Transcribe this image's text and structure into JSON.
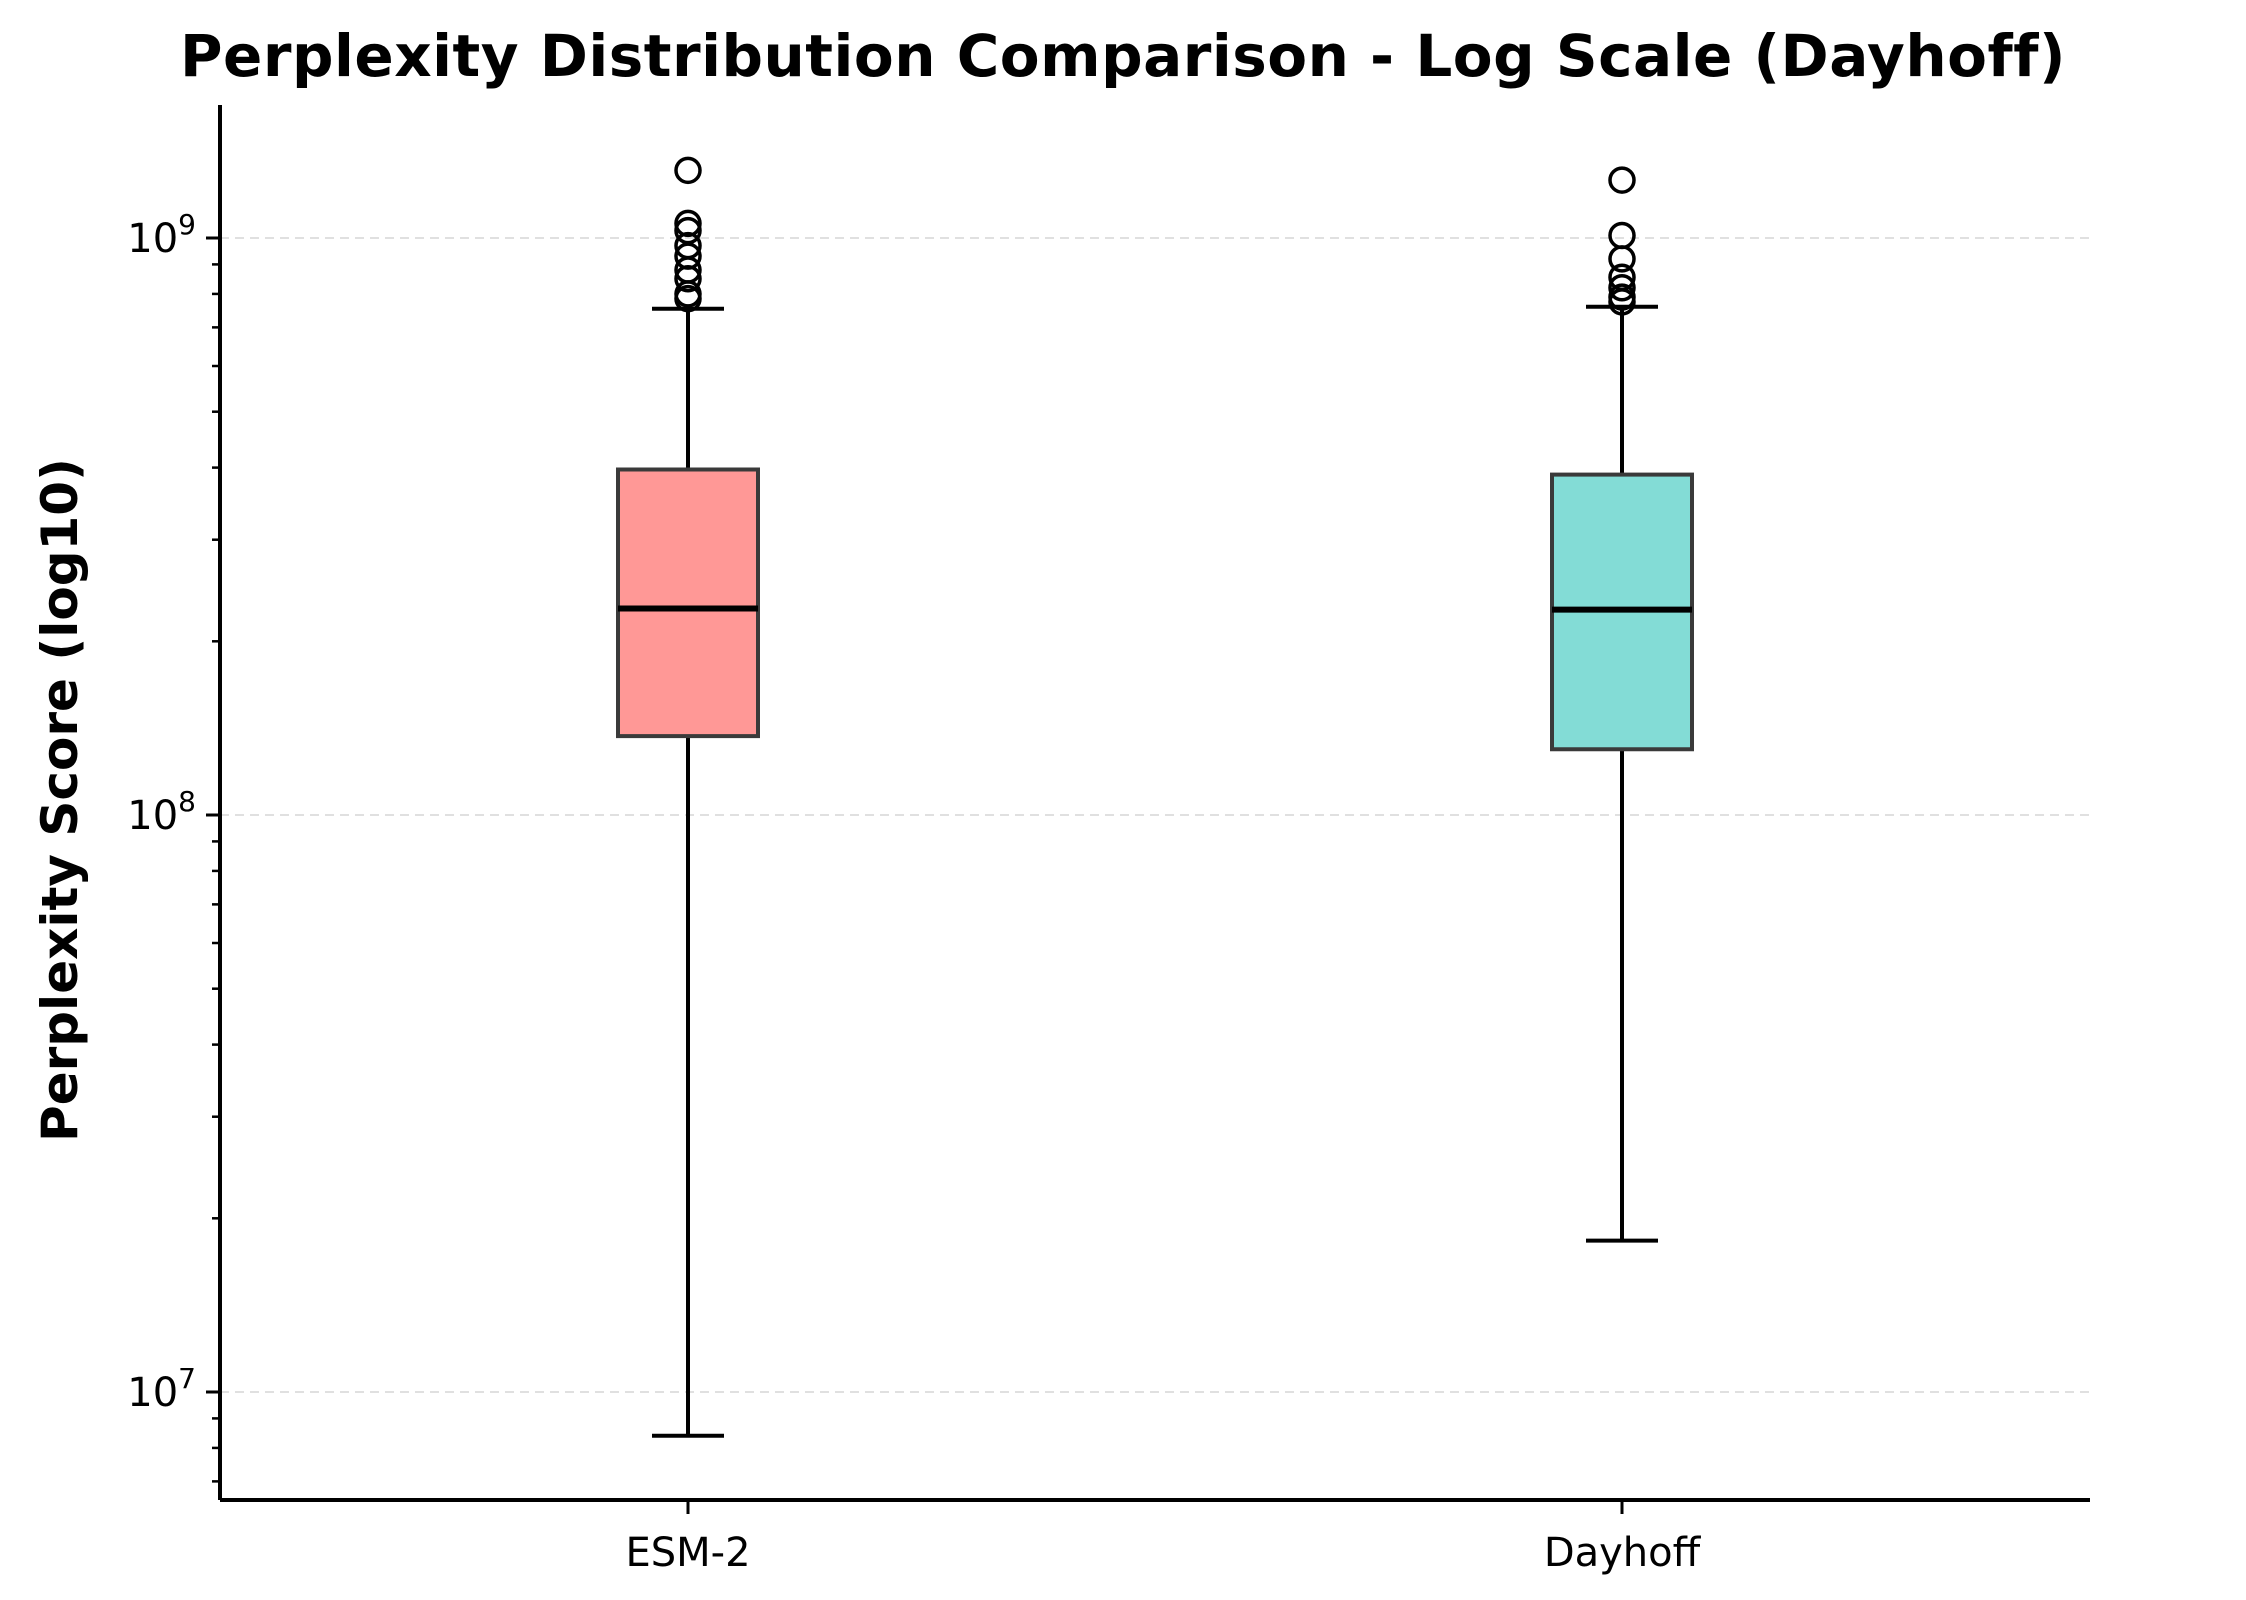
{
  "chart_data": {
    "type": "box",
    "title": "Perplexity Distribution Comparison - Log Scale (Dayhoff)",
    "xlabel": "",
    "ylabel": "Perplexity Score (log10)",
    "yscale": "log",
    "ylim": [
      6500000,
      1700000000
    ],
    "yticks": [
      {
        "value": 10000000,
        "base": "10",
        "exp": "7"
      },
      {
        "value": 100000000,
        "base": "10",
        "exp": "8"
      },
      {
        "value": 1000000000,
        "base": "10",
        "exp": "9"
      }
    ],
    "grid": "y-major-dashed",
    "categories": [
      "ESM-2",
      "Dayhoff"
    ],
    "boxes": [
      {
        "label": "ESM-2",
        "color": "#FF9896",
        "whisker_low": 8400000,
        "q1": 137000000,
        "median": 228000000,
        "q3": 397000000,
        "whisker_high": 754000000,
        "outliers": [
          1310000000,
          1060000000,
          1030000000,
          970000000,
          930000000,
          880000000,
          850000000,
          800000000,
          785000000
        ]
      },
      {
        "label": "Dayhoff",
        "color": "#83DCD6",
        "whisker_low": 18300000,
        "q1": 130000000,
        "median": 227000000,
        "q3": 389000000,
        "whisker_high": 760000000,
        "outliers": [
          1260000000,
          1010000000,
          920000000,
          855000000,
          820000000,
          790000000,
          775000000
        ]
      }
    ]
  }
}
